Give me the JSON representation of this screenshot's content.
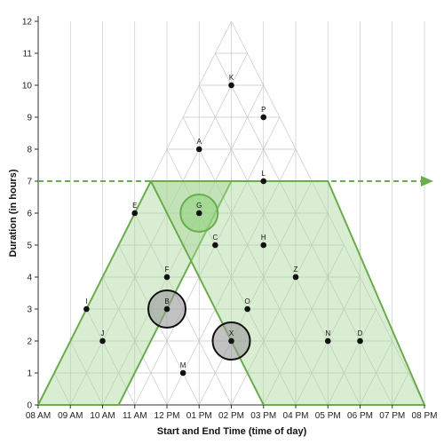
{
  "chart_data": {
    "type": "scatter",
    "xlabel": "Start and End Time (time of day)",
    "ylabel": "Duration (in hours)",
    "xlim": [
      8,
      20
    ],
    "ylim": [
      0,
      12
    ],
    "x_tick_labels": [
      "08 AM",
      "09 AM",
      "10 AM",
      "11 AM",
      "12 PM",
      "01 PM",
      "02 PM",
      "03 PM",
      "04 PM",
      "05 PM",
      "06 PM",
      "07 PM",
      "08 PM"
    ],
    "y_tick_labels": [
      "0",
      "1",
      "2",
      "3",
      "4",
      "5",
      "6",
      "7",
      "8",
      "9",
      "10",
      "11",
      "12"
    ],
    "reference_line_y": 7,
    "highlight_colors": {
      "band_fill": "#a8d89a",
      "band_stroke": "#6aac4e",
      "circle_fill": "#9a9a9a"
    },
    "regions": [
      {
        "name": "band-left",
        "polygon": [
          [
            8.0,
            0
          ],
          [
            11.5,
            7
          ],
          [
            14.0,
            7
          ],
          [
            10.5,
            0
          ]
        ]
      },
      {
        "name": "band-right",
        "polygon": [
          [
            11.5,
            7
          ],
          [
            17.0,
            7
          ],
          [
            20.0,
            0
          ],
          [
            15.0,
            0
          ]
        ]
      }
    ],
    "points": [
      {
        "label": "A",
        "x": 13.0,
        "y": 8
      },
      {
        "label": "B",
        "x": 12.0,
        "y": 3
      },
      {
        "label": "C",
        "x": 13.5,
        "y": 5
      },
      {
        "label": "D",
        "x": 18.0,
        "y": 2
      },
      {
        "label": "E",
        "x": 11.0,
        "y": 6
      },
      {
        "label": "F",
        "x": 12.0,
        "y": 4
      },
      {
        "label": "G",
        "x": 13.0,
        "y": 6
      },
      {
        "label": "H",
        "x": 15.0,
        "y": 5
      },
      {
        "label": "I",
        "x": 9.5,
        "y": 3
      },
      {
        "label": "J",
        "x": 10.0,
        "y": 2
      },
      {
        "label": "K",
        "x": 14.0,
        "y": 10
      },
      {
        "label": "L",
        "x": 15.0,
        "y": 7
      },
      {
        "label": "M",
        "x": 12.5,
        "y": 1
      },
      {
        "label": "N",
        "x": 17.0,
        "y": 2
      },
      {
        "label": "O",
        "x": 14.5,
        "y": 3
      },
      {
        "label": "P",
        "x": 15.0,
        "y": 9
      },
      {
        "label": "X",
        "x": 14.0,
        "y": 2
      },
      {
        "label": "Z",
        "x": 16.0,
        "y": 4
      }
    ],
    "highlighted_circles": [
      {
        "label": "G",
        "color": "green"
      },
      {
        "label": "B",
        "color": "gray"
      },
      {
        "label": "X",
        "color": "gray"
      }
    ]
  }
}
